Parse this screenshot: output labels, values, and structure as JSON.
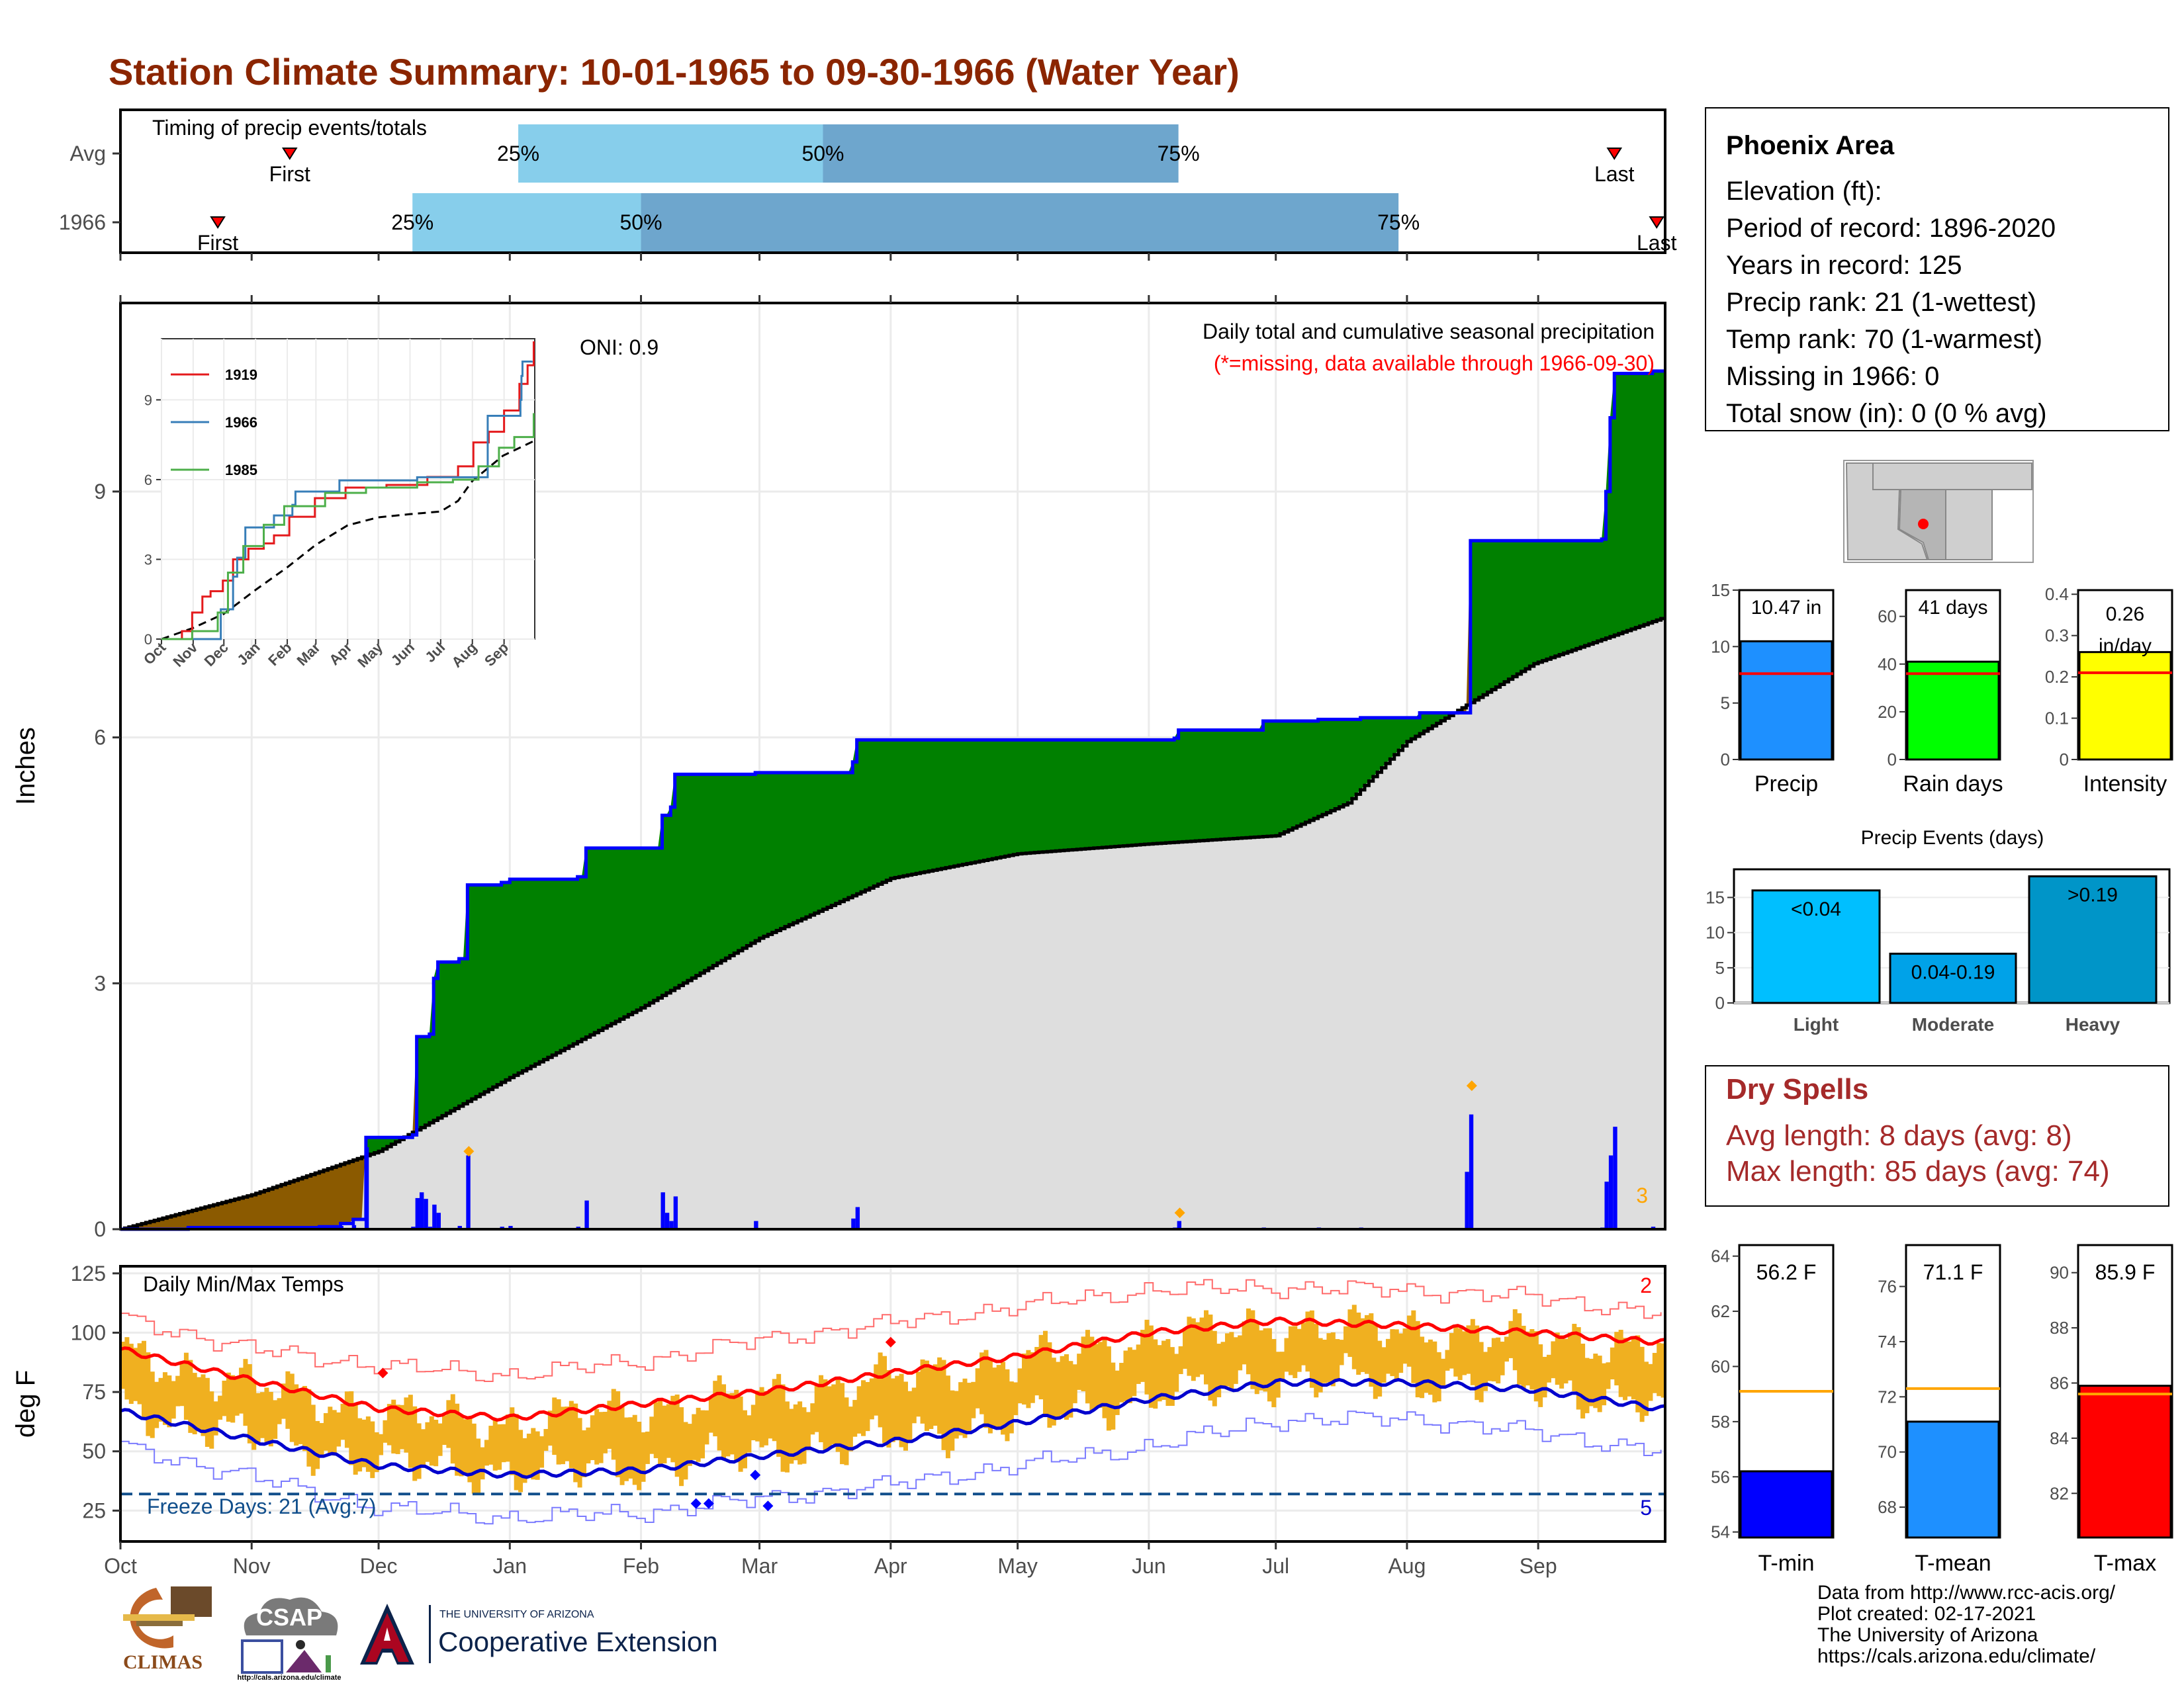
{
  "title": "Station Climate Summary: 10-01-1965 to 09-30-1966 (Water Year)",
  "timing": {
    "label": "Timing of precip events/totals",
    "rows": [
      {
        "name": "Avg",
        "first_label": "First",
        "last_label": "Last",
        "first_day": 40,
        "last_day": 353,
        "p25_day": 94,
        "p50_day": 166,
        "p75_day": 250
      },
      {
        "name": "1966",
        "first_label": "First",
        "last_label": "Last",
        "first_day": 23,
        "last_day": 363,
        "p25_day": 69,
        "p50_day": 123,
        "p75_day": 302
      }
    ],
    "pct_labels": [
      "25%",
      "50%",
      "75%"
    ]
  },
  "station": {
    "name": "Phoenix Area",
    "lines": [
      "Elevation (ft):",
      "Period of record: 1896-2020",
      "Years in record: 125",
      "Precip rank: 21 (1-wettest)",
      "Temp rank: 70 (1-warmest)",
      "Missing in 1966: 0",
      "Total snow (in): 0 (0 % avg)"
    ]
  },
  "chart_data": [
    {
      "type": "area",
      "id": "cumulative-precip",
      "annotation_title": "Daily total and cumulative seasonal precipitation",
      "annotation_missing": "(*=missing, data available through 1966-09-30)",
      "oni": "ONI: 0.9",
      "ylabel": "Inches",
      "ylim": [
        0,
        11.3
      ],
      "yticks": [
        0,
        3,
        6,
        9
      ],
      "xticks": [
        "Oct",
        "Nov",
        "Dec",
        "Jan",
        "Feb",
        "Mar",
        "Apr",
        "May",
        "Jun",
        "Jul",
        "Aug",
        "Sep"
      ],
      "corner_count": "3",
      "cumulative_1966_steps": [
        [
          0,
          0.0
        ],
        [
          16,
          0.02
        ],
        [
          47,
          0.03
        ],
        [
          52,
          0.07
        ],
        [
          55,
          0.12
        ],
        [
          58,
          1.12
        ],
        [
          69,
          1.15
        ],
        [
          70,
          2.35
        ],
        [
          73,
          2.38
        ],
        [
          74,
          3.06
        ],
        [
          75,
          3.26
        ],
        [
          80,
          3.3
        ],
        [
          82,
          4.2
        ],
        [
          90,
          4.23
        ],
        [
          92,
          4.27
        ],
        [
          108,
          4.3
        ],
        [
          109,
          4.3
        ],
        [
          110,
          4.65
        ],
        [
          127,
          4.65
        ],
        [
          128,
          5.05
        ],
        [
          130,
          5.15
        ],
        [
          131,
          5.55
        ],
        [
          150,
          5.57
        ],
        [
          173,
          5.7
        ],
        [
          174,
          5.97
        ],
        [
          249,
          5.99
        ],
        [
          250,
          6.09
        ],
        [
          270,
          6.2
        ],
        [
          283,
          6.22
        ],
        [
          290,
          6.22
        ],
        [
          293,
          6.24
        ],
        [
          307,
          6.3
        ],
        [
          318,
          6.3
        ],
        [
          319,
          8.4
        ],
        [
          350,
          8.42
        ],
        [
          351,
          9.0
        ],
        [
          352,
          9.9
        ],
        [
          353,
          10.44
        ],
        [
          359,
          10.44
        ],
        [
          362,
          10.47
        ]
      ],
      "avg_cumulative": [
        [
          0,
          0.0
        ],
        [
          31,
          0.42
        ],
        [
          61,
          0.95
        ],
        [
          92,
          1.85
        ],
        [
          123,
          2.7
        ],
        [
          151,
          3.55
        ],
        [
          182,
          4.28
        ],
        [
          212,
          4.58
        ],
        [
          243,
          4.7
        ],
        [
          273,
          4.8
        ],
        [
          290,
          5.2
        ],
        [
          304,
          5.95
        ],
        [
          334,
          6.9
        ],
        [
          364,
          7.45
        ]
      ],
      "daily_precip": [
        [
          16,
          0.02
        ],
        [
          47,
          0.02
        ],
        [
          52,
          0.04
        ],
        [
          55,
          0.05
        ],
        [
          58,
          1.0
        ],
        [
          69,
          0.03
        ],
        [
          70,
          0.38
        ],
        [
          71,
          0.45
        ],
        [
          72,
          0.37
        ],
        [
          73,
          0.03
        ],
        [
          74,
          0.3
        ],
        [
          75,
          0.2
        ],
        [
          80,
          0.04
        ],
        [
          82,
          0.9
        ],
        [
          90,
          0.03
        ],
        [
          92,
          0.04
        ],
        [
          108,
          0.03
        ],
        [
          110,
          0.35
        ],
        [
          128,
          0.45
        ],
        [
          129,
          0.2
        ],
        [
          130,
          0.1
        ],
        [
          131,
          0.4
        ],
        [
          150,
          0.1
        ],
        [
          173,
          0.13
        ],
        [
          174,
          0.27
        ],
        [
          249,
          0.02
        ],
        [
          250,
          0.1
        ],
        [
          270,
          0.02
        ],
        [
          283,
          0.02
        ],
        [
          293,
          0.02
        ],
        [
          318,
          0.7
        ],
        [
          319,
          1.4
        ],
        [
          350,
          0.02
        ],
        [
          351,
          0.58
        ],
        [
          352,
          0.9
        ],
        [
          353,
          1.25
        ],
        [
          362,
          0.03
        ]
      ],
      "daily_max_markers": [
        [
          82,
          0.95
        ],
        [
          250,
          0.2
        ],
        [
          319,
          1.75
        ]
      ]
    },
    {
      "type": "line",
      "id": "inset-cumulative",
      "series": [
        {
          "name": "1919",
          "color": "#e41a1c",
          "values": [
            [
              0,
              0.0
            ],
            [
              20,
              0.3
            ],
            [
              30,
              1.0
            ],
            [
              40,
              1.6
            ],
            [
              48,
              1.8
            ],
            [
              60,
              2.2
            ],
            [
              70,
              3.0
            ],
            [
              85,
              3.4
            ],
            [
              100,
              3.6
            ],
            [
              110,
              3.9
            ],
            [
              125,
              4.6
            ],
            [
              150,
              5.3
            ],
            [
              180,
              5.7
            ],
            [
              220,
              5.8
            ],
            [
              260,
              6.1
            ],
            [
              290,
              6.5
            ],
            [
              305,
              7.4
            ],
            [
              320,
              7.8
            ],
            [
              335,
              8.6
            ],
            [
              350,
              9.6
            ],
            [
              358,
              10.3
            ],
            [
              364,
              11.2
            ]
          ]
        },
        {
          "name": "1966",
          "color": "#377eb8",
          "values": [
            [
              0,
              0.0
            ],
            [
              58,
              1.12
            ],
            [
              70,
              2.35
            ],
            [
              74,
              3.06
            ],
            [
              82,
              4.2
            ],
            [
              110,
              4.65
            ],
            [
              128,
              5.05
            ],
            [
              131,
              5.55
            ],
            [
              174,
              5.97
            ],
            [
              250,
              6.09
            ],
            [
              319,
              8.4
            ],
            [
              351,
              9.0
            ],
            [
              352,
              9.9
            ],
            [
              353,
              10.44
            ],
            [
              362,
              10.47
            ]
          ]
        },
        {
          "name": "1985",
          "color": "#4daf4a",
          "values": [
            [
              0,
              0.0
            ],
            [
              30,
              0.3
            ],
            [
              55,
              1.0
            ],
            [
              65,
              2.5
            ],
            [
              80,
              3.5
            ],
            [
              100,
              4.3
            ],
            [
              120,
              5.0
            ],
            [
              160,
              5.5
            ],
            [
              200,
              5.7
            ],
            [
              250,
              5.9
            ],
            [
              285,
              6.0
            ],
            [
              310,
              6.5
            ],
            [
              330,
              7.2
            ],
            [
              345,
              7.6
            ],
            [
              364,
              8.5
            ]
          ]
        }
      ],
      "avg": [
        [
          0,
          0.0
        ],
        [
          31,
          0.42
        ],
        [
          61,
          0.95
        ],
        [
          92,
          1.85
        ],
        [
          123,
          2.7
        ],
        [
          151,
          3.55
        ],
        [
          182,
          4.28
        ],
        [
          212,
          4.58
        ],
        [
          243,
          4.7
        ],
        [
          273,
          4.8
        ],
        [
          290,
          5.2
        ],
        [
          304,
          5.95
        ],
        [
          334,
          6.9
        ],
        [
          364,
          7.45
        ]
      ],
      "ylim": [
        0,
        11.3
      ],
      "yticks": [
        0,
        3,
        6,
        9
      ],
      "xticks": [
        "Oct",
        "Nov",
        "Dec",
        "Jan",
        "Feb",
        "Mar",
        "Apr",
        "May",
        "Jun",
        "Jul",
        "Aug",
        "Sep"
      ]
    },
    {
      "type": "bar",
      "id": "temperature",
      "annotation": "Daily Min/Max Temps",
      "ylabel": "deg F",
      "ylim": [
        12,
        128
      ],
      "yticks": [
        25,
        50,
        75,
        100,
        125
      ],
      "xticks": [
        "Oct",
        "Nov",
        "Dec",
        "Jan",
        "Feb",
        "Mar",
        "Apr",
        "May",
        "Jun",
        "Jul",
        "Aug",
        "Sep"
      ],
      "freeze_line": 32,
      "freeze_label": "Freeze Days: 21 (Avg:7)",
      "record_high_count": "2",
      "record_low_count": "5",
      "avg_max": [
        [
          0,
          93
        ],
        [
          31,
          80
        ],
        [
          61,
          68
        ],
        [
          92,
          64
        ],
        [
          123,
          70
        ],
        [
          151,
          75
        ],
        [
          182,
          83
        ],
        [
          212,
          90
        ],
        [
          243,
          100
        ],
        [
          273,
          105
        ],
        [
          304,
          103
        ],
        [
          334,
          100
        ],
        [
          364,
          96
        ]
      ],
      "avg_min": [
        [
          0,
          67
        ],
        [
          31,
          55
        ],
        [
          61,
          44
        ],
        [
          92,
          40
        ],
        [
          123,
          42
        ],
        [
          151,
          48
        ],
        [
          182,
          54
        ],
        [
          212,
          62
        ],
        [
          243,
          72
        ],
        [
          273,
          79
        ],
        [
          304,
          79
        ],
        [
          334,
          76
        ],
        [
          364,
          68
        ]
      ],
      "record_max": [
        [
          0,
          106
        ],
        [
          31,
          93
        ],
        [
          61,
          86
        ],
        [
          92,
          82
        ],
        [
          123,
          88
        ],
        [
          151,
          97
        ],
        [
          182,
          104
        ],
        [
          212,
          111
        ],
        [
          243,
          118
        ],
        [
          273,
          119
        ],
        [
          304,
          118
        ],
        [
          334,
          115
        ],
        [
          364,
          108
        ]
      ],
      "record_min": [
        [
          0,
          52
        ],
        [
          31,
          39
        ],
        [
          61,
          26
        ],
        [
          92,
          22
        ],
        [
          123,
          24
        ],
        [
          151,
          30
        ],
        [
          182,
          36
        ],
        [
          212,
          44
        ],
        [
          243,
          52
        ],
        [
          273,
          63
        ],
        [
          304,
          64
        ],
        [
          334,
          58
        ],
        [
          364,
          50
        ]
      ],
      "record_high_markers": [
        [
          62,
          83
        ],
        [
          182,
          96
        ]
      ],
      "record_low_markers": [
        [
          136,
          28
        ],
        [
          139,
          28
        ],
        [
          150,
          40
        ],
        [
          153,
          27
        ]
      ]
    },
    {
      "type": "bar",
      "id": "totals",
      "panels": [
        {
          "name": "Precip",
          "value": 10.47,
          "label": "10.47 in",
          "avg": 7.6,
          "color": "#1e90ff",
          "ylim": [
            0,
            15
          ],
          "yticks": [
            0,
            5,
            10,
            15
          ]
        },
        {
          "name": "Rain days",
          "value": 41,
          "label": "41 days",
          "avg": 36,
          "color": "#00ff00",
          "ylim": [
            0,
            71
          ],
          "yticks": [
            0,
            20,
            40,
            60
          ]
        },
        {
          "name": "Intensity",
          "value": 0.26,
          "label": "0.26 in/day",
          "avg": 0.21,
          "color": "#ffff00",
          "ylim": [
            0,
            0.41
          ],
          "yticks": [
            0.0,
            0.1,
            0.2,
            0.3,
            0.4
          ]
        }
      ]
    },
    {
      "type": "bar",
      "id": "precip-events",
      "title": "Precip Events (days)",
      "categories": [
        "Light",
        "Moderate",
        "Heavy"
      ],
      "values": [
        16,
        7,
        18
      ],
      "labels": [
        "<0.04",
        "0.04-0.19",
        ">0.19"
      ],
      "colors": [
        "#00bfff",
        "#00a2e8",
        "#0095c8"
      ],
      "ylim": [
        0,
        19
      ],
      "yticks": [
        0,
        5,
        10,
        15
      ]
    },
    {
      "type": "bar",
      "id": "temp-means",
      "panels": [
        {
          "name": "T-min",
          "value": 56.2,
          "label": "56.2 F",
          "avg": 59.1,
          "color": "#0000ff",
          "ylim": [
            53.8,
            64.4
          ],
          "yticks": [
            54,
            56,
            58,
            60,
            62,
            64
          ]
        },
        {
          "name": "T-mean",
          "value": 71.1,
          "label": "71.1 F",
          "avg": 72.3,
          "color": "#1e90ff",
          "ylim": [
            66.9,
            77.5
          ],
          "yticks": [
            68,
            70,
            72,
            74,
            76
          ]
        },
        {
          "name": "T-max",
          "value": 85.9,
          "label": "85.9 F",
          "avg": 85.6,
          "color": "#ff0000",
          "ylim": [
            80.4,
            91.0
          ],
          "yticks": [
            82,
            84,
            86,
            88,
            90
          ]
        }
      ]
    }
  ],
  "dry_spells": {
    "title": "Dry Spells",
    "lines": [
      "Avg length: 8 days (avg: 8)",
      "Max length: 85 days (avg: 74)"
    ]
  },
  "footer": [
    "Data from http://www.rcc-acis.org/",
    "Plot created: 02-17-2021",
    "The University of Arizona",
    "https://cals.arizona.edu/climate/"
  ],
  "logos": {
    "climas": "CLIMAS",
    "csap": "CSAP",
    "csap_url": "http://cals.arizona.edu/climate",
    "ua_small": "THE UNIVERSITY OF ARIZONA",
    "ua_big": "Cooperative Extension"
  },
  "colors": {
    "title": "#8b2500",
    "above_avg": "#008000",
    "below_avg": "#8b5a00",
    "avg_fill": "#dedede",
    "daily_bar": "#0000ff",
    "temp_bar": "#f0b020",
    "avg_max": "#ff0000",
    "avg_min": "#0000cd",
    "q_light": "#87ceeb",
    "q_dark": "#6ea6cd",
    "avg_line": "#ffa500"
  }
}
